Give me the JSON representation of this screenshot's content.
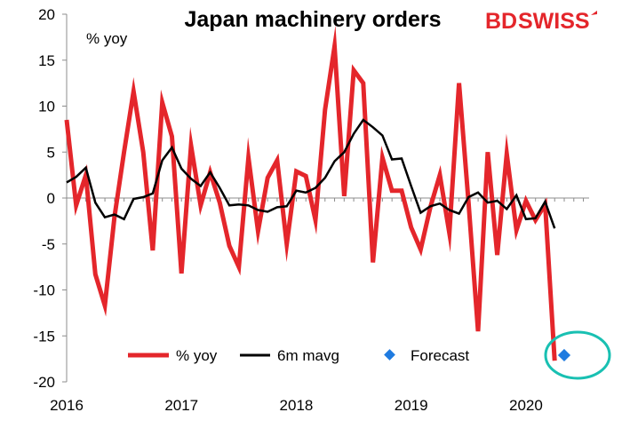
{
  "brand": {
    "logo_text_bd": "BD",
    "logo_text_swiss": "SWISS",
    "brand_color": "#e4262b"
  },
  "chart_data": {
    "type": "line",
    "title": "Japan machinery orders",
    "unit_label": "% yoy",
    "xlabel": "",
    "ylabel": "",
    "ylim": [
      -20,
      20
    ],
    "xlim": [
      2016.0,
      2020.55
    ],
    "yticks": [
      20,
      15,
      10,
      5,
      0,
      -5,
      -10,
      -15,
      -20
    ],
    "xticks": [
      2016,
      2017,
      2018,
      2019,
      2020
    ],
    "xtick_labels": [
      "2016",
      "2017",
      "2018",
      "2019",
      "2020"
    ],
    "grid": false,
    "legend_position": "bottom",
    "series": [
      {
        "name": "% yoy",
        "color": "#e4262b",
        "style": "line-thick",
        "x": [
          2016.0,
          2016.083,
          2016.167,
          2016.25,
          2016.333,
          2016.417,
          2016.5,
          2016.583,
          2016.667,
          2016.75,
          2016.833,
          2016.917,
          2017.0,
          2017.083,
          2017.167,
          2017.25,
          2017.333,
          2017.417,
          2017.5,
          2017.583,
          2017.667,
          2017.75,
          2017.833,
          2017.917,
          2018.0,
          2018.083,
          2018.167,
          2018.25,
          2018.333,
          2018.417,
          2018.5,
          2018.583,
          2018.667,
          2018.75,
          2018.833,
          2018.917,
          2019.0,
          2019.083,
          2019.167,
          2019.25,
          2019.333,
          2019.417,
          2019.5,
          2019.583,
          2019.667,
          2019.75,
          2019.833,
          2019.917,
          2020.0,
          2020.083,
          2020.167,
          2020.25
        ],
        "values": [
          8.5,
          -0.8,
          2.5,
          -8.3,
          -11.7,
          -2.0,
          5.0,
          11.6,
          5.0,
          -5.7,
          10.4,
          6.7,
          -8.2,
          5.7,
          -0.8,
          2.8,
          -0.5,
          -5.2,
          -7.5,
          4.4,
          -3.6,
          2.2,
          4.1,
          -5.0,
          2.9,
          2.4,
          -2.4,
          9.6,
          16.5,
          0.2,
          13.9,
          12.5,
          -7.0,
          4.4,
          0.8,
          0.8,
          -3.2,
          -5.6,
          -1.0,
          2.5,
          -3.8,
          12.5,
          -0.5,
          -14.5,
          5.0,
          -6.2,
          4.8,
          -3.5,
          -0.3,
          -2.4,
          -0.7,
          -17.7
        ]
      },
      {
        "name": "6m mavg",
        "color": "#000000",
        "style": "line",
        "x": [
          2016.0,
          2016.083,
          2016.167,
          2016.25,
          2016.333,
          2016.417,
          2016.5,
          2016.583,
          2016.667,
          2016.75,
          2016.833,
          2016.917,
          2017.0,
          2017.083,
          2017.167,
          2017.25,
          2017.333,
          2017.417,
          2017.5,
          2017.583,
          2017.667,
          2017.75,
          2017.833,
          2017.917,
          2018.0,
          2018.083,
          2018.167,
          2018.25,
          2018.333,
          2018.417,
          2018.5,
          2018.583,
          2018.667,
          2018.75,
          2018.833,
          2018.917,
          2019.0,
          2019.083,
          2019.167,
          2019.25,
          2019.333,
          2019.417,
          2019.5,
          2019.583,
          2019.667,
          2019.75,
          2019.833,
          2019.917,
          2020.0,
          2020.083,
          2020.167,
          2020.25
        ],
        "values": [
          1.7,
          2.3,
          3.3,
          -0.5,
          -2.1,
          -1.8,
          -2.3,
          -0.1,
          0.1,
          0.5,
          4.1,
          5.5,
          3.2,
          2.1,
          1.3,
          2.8,
          1.1,
          -0.8,
          -0.7,
          -0.8,
          -1.3,
          -1.5,
          -1.0,
          -0.9,
          0.8,
          0.6,
          1.1,
          2.2,
          4.0,
          5.0,
          7.0,
          8.5,
          7.7,
          6.8,
          4.2,
          4.3,
          1.3,
          -1.6,
          -0.9,
          -0.6,
          -1.3,
          -1.7,
          0.1,
          0.6,
          -0.5,
          -0.3,
          -1.2,
          0.3,
          -2.3,
          -2.2,
          -0.4,
          -3.3
        ]
      },
      {
        "name": "Forecast",
        "color": "#1f7be0",
        "style": "marker-diamond",
        "x": [
          2020.333
        ],
        "values": [
          -17.1
        ]
      }
    ]
  }
}
